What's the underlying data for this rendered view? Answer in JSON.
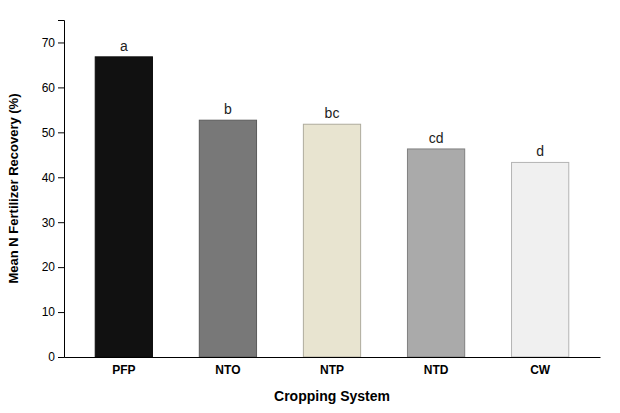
{
  "chart_data": {
    "type": "bar",
    "categories": [
      "PFP",
      "NTO",
      "NTP",
      "NTD",
      "CW"
    ],
    "values": [
      66.8,
      52.7,
      51.8,
      46.3,
      43.3
    ],
    "colors": [
      "#111111",
      "#787878",
      "#e8e4d0",
      "#aaaaaa",
      "#f0f0f0"
    ],
    "annotations": [
      "a",
      "b",
      "bc",
      "cd",
      "d"
    ],
    "xlabel": "Cropping System",
    "ylabel": "Mean N Fertilizer Recovery (%)",
    "ylim": [
      0,
      75
    ],
    "yticks": [
      0,
      10,
      20,
      30,
      40,
      50,
      60,
      70
    ],
    "grid": false
  }
}
